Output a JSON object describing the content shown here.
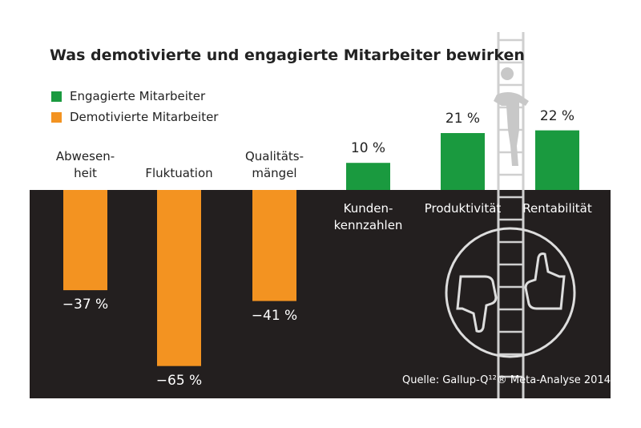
{
  "chart_data": {
    "type": "bar",
    "title": "Was demotivierte und engagierte Mitarbeiter bewirken",
    "legend": [
      {
        "name": "Engagierte Mitarbeiter",
        "color": "#1a9a3f"
      },
      {
        "name": "Demotivierte Mitarbeiter",
        "color": "#f39321"
      }
    ],
    "legend_position": "top-left",
    "categories": [
      "Abwesen-heit",
      "Fluktuation",
      "Qualitäts-mängel",
      "Kunden-kennzahlen",
      "Produktivität",
      "Rentabilität"
    ],
    "category_lines": [
      [
        "Abwesen-",
        "heit"
      ],
      [
        "Fluktuation"
      ],
      [
        "Qualitäts-",
        "mängel"
      ],
      [
        "Kunden-",
        "kennzahlen"
      ],
      [
        "Produktivität"
      ],
      [
        "Rentabilität"
      ]
    ],
    "values": [
      -37,
      -65,
      -41,
      10,
      21,
      22
    ],
    "labels": [
      "−37 %",
      "−65 %",
      "−41 %",
      "10 %",
      "21 %",
      "22 %"
    ],
    "series_of": [
      "Demotivierte Mitarbeiter",
      "Demotivierte Mitarbeiter",
      "Demotivierte Mitarbeiter",
      "Engagierte Mitarbeiter",
      "Engagierte Mitarbeiter",
      "Engagierte Mitarbeiter"
    ],
    "source": "Quelle: Gallup-Q¹²® Meta-Analyse 2014"
  },
  "colors": {
    "dark": "#231f1f",
    "ladder": "#cfcfcf"
  }
}
